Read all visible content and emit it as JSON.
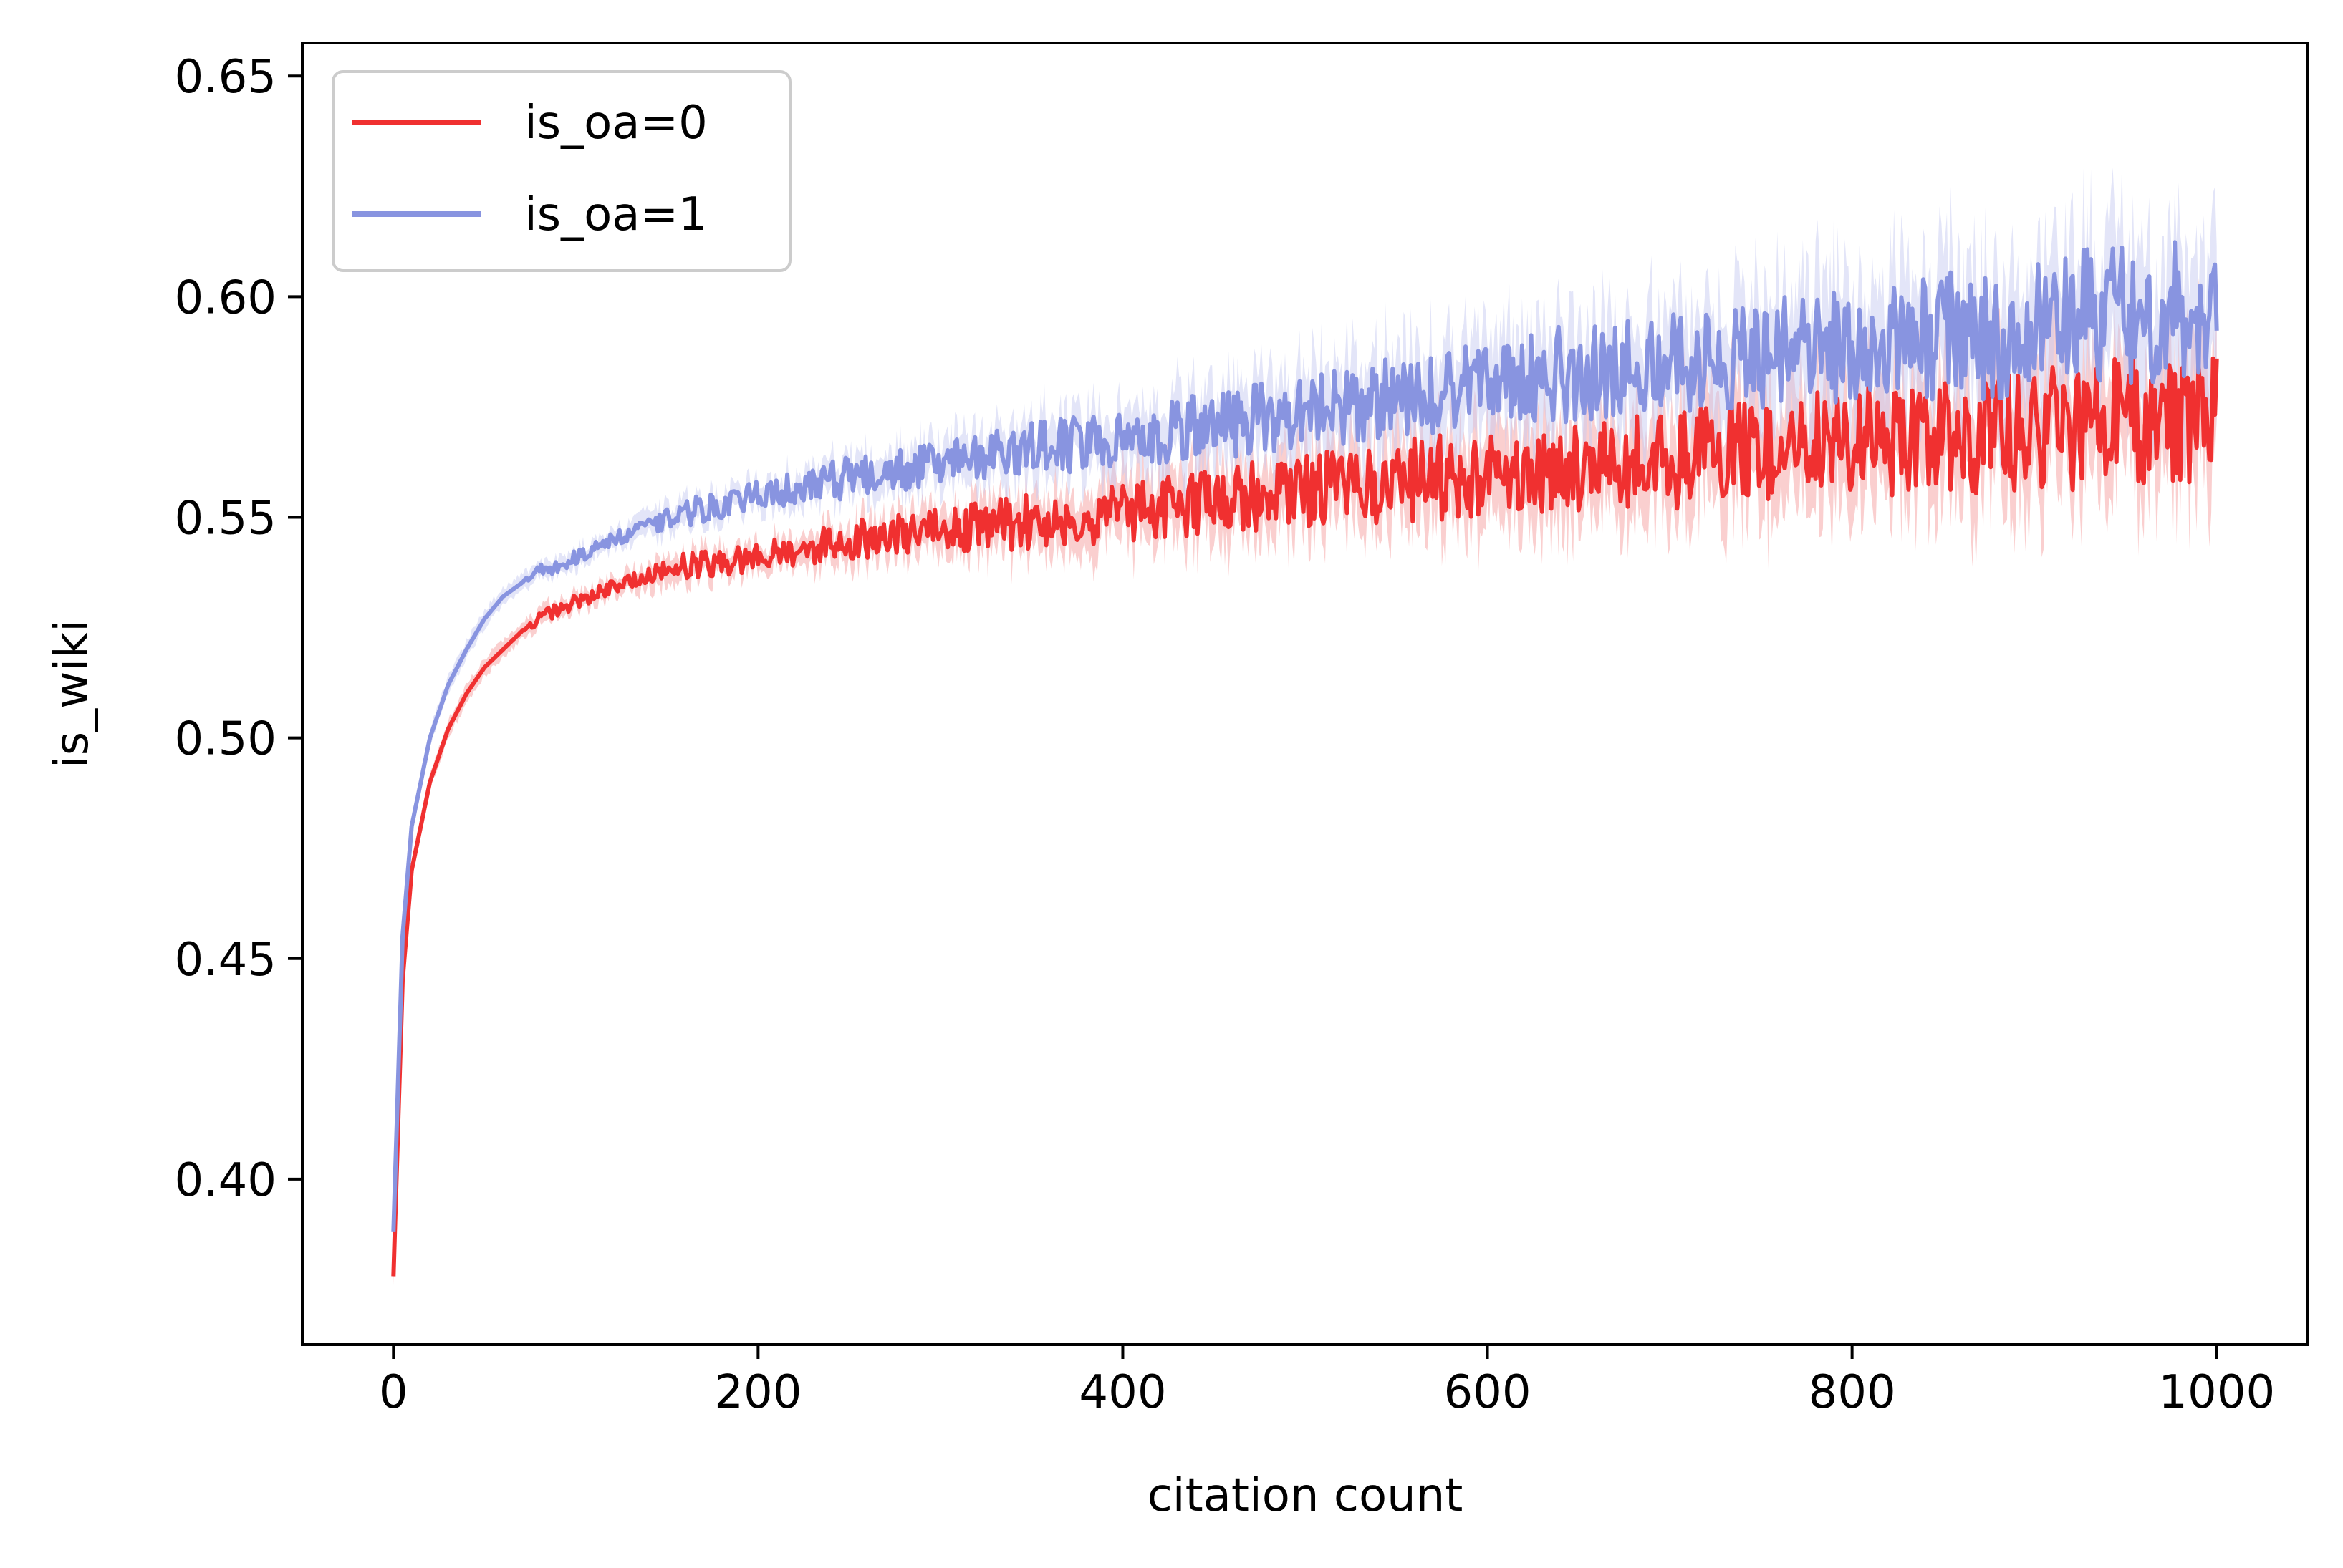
{
  "chart_data": {
    "type": "line",
    "title": "",
    "xlabel": "citation count",
    "ylabel": "is_wiki",
    "xlim": [
      -50,
      1050
    ],
    "ylim": [
      0.3625,
      0.6575
    ],
    "xticks": [
      0,
      200,
      400,
      600,
      800,
      1000
    ],
    "xtick_labels": [
      "0",
      "200",
      "400",
      "600",
      "800",
      "1000"
    ],
    "yticks": [
      0.4,
      0.45,
      0.5,
      0.55,
      0.6,
      0.65
    ],
    "ytick_labels": [
      "0.40",
      "0.45",
      "0.50",
      "0.55",
      "0.60",
      "0.65"
    ],
    "grid": false,
    "legend_position": "top-left",
    "series": [
      {
        "name": "is_oa=0",
        "color": "#f03030",
        "band_color": "#f5a0a0",
        "x": [
          0,
          5,
          10,
          20,
          30,
          40,
          50,
          60,
          70,
          80,
          90,
          100,
          120,
          140,
          160,
          180,
          200,
          250,
          300,
          350,
          400,
          450,
          500,
          550,
          600,
          650,
          700,
          750,
          800,
          850,
          900,
          950,
          1000
        ],
        "values": [
          0.378,
          0.445,
          0.47,
          0.49,
          0.502,
          0.51,
          0.516,
          0.52,
          0.524,
          0.527,
          0.529,
          0.531,
          0.534,
          0.537,
          0.539,
          0.54,
          0.541,
          0.545,
          0.547,
          0.549,
          0.551,
          0.554,
          0.556,
          0.558,
          0.56,
          0.561,
          0.563,
          0.565,
          0.567,
          0.568,
          0.569,
          0.572,
          0.571
        ],
        "noise": [
          0.0,
          0.0,
          0.0,
          0.0,
          0.0,
          0.0,
          0.0,
          0.0,
          0.0,
          0.001,
          0.001,
          0.001,
          0.001,
          0.001,
          0.002,
          0.002,
          0.002,
          0.003,
          0.003,
          0.004,
          0.004,
          0.005,
          0.005,
          0.006,
          0.006,
          0.006,
          0.007,
          0.007,
          0.008,
          0.008,
          0.009,
          0.009,
          0.01
        ],
        "band": [
          0.002,
          0.002,
          0.002,
          0.002,
          0.002,
          0.002,
          0.002,
          0.002,
          0.002,
          0.002,
          0.002,
          0.002,
          0.002,
          0.003,
          0.003,
          0.003,
          0.003,
          0.004,
          0.005,
          0.006,
          0.007,
          0.008,
          0.008,
          0.009,
          0.01,
          0.011,
          0.011,
          0.012,
          0.013,
          0.013,
          0.014,
          0.014,
          0.015
        ]
      },
      {
        "name": "is_oa=1",
        "color": "#8894e0",
        "band_color": "#c8ccf2",
        "x": [
          0,
          5,
          10,
          20,
          30,
          40,
          50,
          60,
          70,
          80,
          90,
          100,
          120,
          140,
          160,
          180,
          200,
          250,
          300,
          350,
          400,
          450,
          500,
          550,
          600,
          650,
          700,
          750,
          800,
          850,
          900,
          950,
          1000
        ],
        "values": [
          0.388,
          0.455,
          0.48,
          0.5,
          0.512,
          0.52,
          0.527,
          0.532,
          0.535,
          0.538,
          0.539,
          0.541,
          0.545,
          0.548,
          0.551,
          0.553,
          0.555,
          0.559,
          0.562,
          0.565,
          0.568,
          0.571,
          0.574,
          0.577,
          0.58,
          0.583,
          0.585,
          0.587,
          0.589,
          0.591,
          0.593,
          0.596,
          0.598
        ],
        "noise": [
          0.0,
          0.0,
          0.0,
          0.0,
          0.0,
          0.0,
          0.0,
          0.0,
          0.0,
          0.001,
          0.001,
          0.001,
          0.001,
          0.001,
          0.002,
          0.002,
          0.002,
          0.003,
          0.003,
          0.004,
          0.004,
          0.005,
          0.005,
          0.006,
          0.006,
          0.007,
          0.007,
          0.008,
          0.008,
          0.009,
          0.01,
          0.01,
          0.011
        ],
        "band": [
          0.002,
          0.002,
          0.002,
          0.002,
          0.002,
          0.002,
          0.002,
          0.002,
          0.002,
          0.002,
          0.002,
          0.002,
          0.002,
          0.003,
          0.003,
          0.003,
          0.003,
          0.004,
          0.005,
          0.006,
          0.007,
          0.008,
          0.009,
          0.01,
          0.011,
          0.011,
          0.012,
          0.013,
          0.014,
          0.014,
          0.015,
          0.016,
          0.017
        ]
      }
    ]
  }
}
